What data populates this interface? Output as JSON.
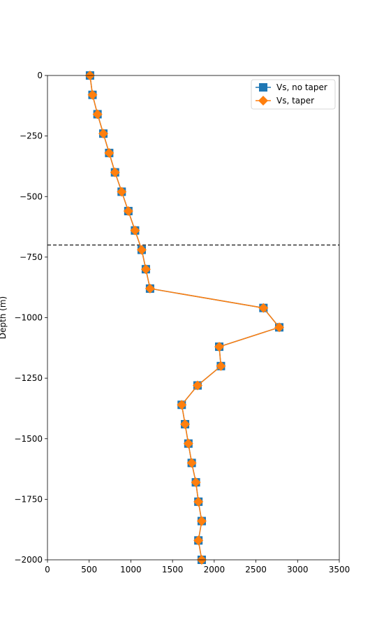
{
  "chart_data": {
    "type": "line",
    "title": "",
    "xlabel": "",
    "ylabel": "Depth (m)",
    "xlim": [
      0,
      3500
    ],
    "ylim": [
      -2000,
      0
    ],
    "xticks": [
      0,
      500,
      1000,
      1500,
      2000,
      2500,
      3000,
      3500
    ],
    "yticks": [
      0,
      -250,
      -500,
      -750,
      -1000,
      -1250,
      -1500,
      -1750,
      -2000
    ],
    "xtick_labels": [
      "0",
      "500",
      "1000",
      "1500",
      "2000",
      "2500",
      "3000",
      "3500"
    ],
    "ytick_labels": [
      "0",
      "−250",
      "−500",
      "−750",
      "−1000",
      "−1250",
      "−1500",
      "−1750",
      "−2000"
    ],
    "grid": false,
    "legend_position": "top-right",
    "reference_line": {
      "y": -700,
      "style": "dashed",
      "color": "#000000"
    },
    "depth": [
      0,
      -80,
      -160,
      -240,
      -320,
      -400,
      -480,
      -560,
      -640,
      -720,
      -800,
      -880,
      -960,
      -1040,
      -1120,
      -1200,
      -1280,
      -1360,
      -1440,
      -1520,
      -1600,
      -1680,
      -1760,
      -1840,
      -1920,
      -2000
    ],
    "series": [
      {
        "name": "Vs, no taper",
        "color": "#1f77b4",
        "marker": "square",
        "x": [
          510,
          540,
          600,
          670,
          740,
          810,
          890,
          970,
          1050,
          1130,
          1180,
          1230,
          2590,
          2780,
          2060,
          2080,
          1800,
          1610,
          1650,
          1690,
          1730,
          1780,
          1810,
          1850,
          1810,
          1850
        ]
      },
      {
        "name": "Vs, taper",
        "color": "#ff7f0e",
        "marker": "diamond",
        "x": [
          510,
          540,
          600,
          670,
          740,
          810,
          890,
          970,
          1050,
          1130,
          1180,
          1230,
          2590,
          2780,
          2060,
          2080,
          1800,
          1610,
          1650,
          1690,
          1730,
          1780,
          1810,
          1850,
          1810,
          1850
        ]
      }
    ]
  }
}
